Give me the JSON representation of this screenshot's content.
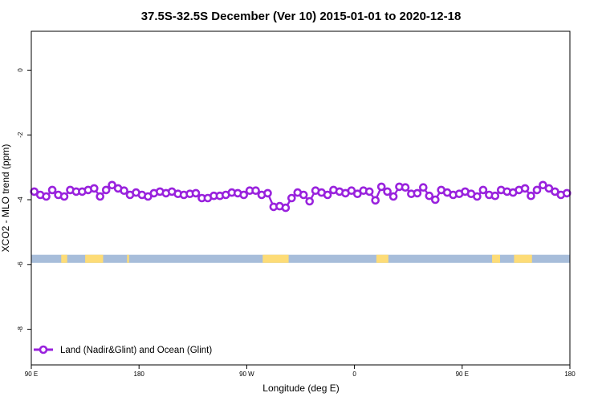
{
  "chart_data": {
    "type": "line",
    "title": "37.5S-32.5S December (Ver 10)   2015-01-01 to 2020-12-18",
    "xlabel": "Longitude (deg E)",
    "ylabel": "XCO2 - MLO trend (ppm)",
    "xlim": [
      -90,
      180
    ],
    "ylim": [
      -9.1,
      1.2
    ],
    "x_ticks": [
      {
        "value": -90,
        "label": "90 E"
      },
      {
        "value": -36,
        "label": "180"
      },
      {
        "value": 18,
        "label": "90 W"
      },
      {
        "value": 72,
        "label": "0"
      },
      {
        "value": 126,
        "label": "90 E"
      },
      {
        "value": 180,
        "label": "180"
      }
    ],
    "y_ticks": [
      {
        "value": 0,
        "label": "0"
      },
      {
        "value": -2,
        "label": "-2"
      },
      {
        "value": -4,
        "label": "-4"
      },
      {
        "value": -6,
        "label": "-6"
      },
      {
        "value": -8,
        "label": "-8"
      }
    ],
    "grid": false,
    "legend_position": "bottom-left",
    "land_ocean_strip": {
      "y_range": [
        -5.95,
        -5.7
      ],
      "ocean_color": "#a7bdda",
      "land_color": "#fddc77",
      "land_x_ranges": [
        [
          -75,
          -72
        ],
        [
          -63,
          -54
        ],
        [
          -42,
          -41
        ],
        [
          26,
          39
        ],
        [
          83,
          89
        ],
        [
          141,
          145
        ],
        [
          152,
          161
        ]
      ]
    },
    "series": [
      {
        "name": "Land (Nadir&Glint) and Ocean (Glint)",
        "color": "#9922dd",
        "x": [
          -88.5,
          -85.5,
          -82.5,
          -79.5,
          -76.5,
          -73.5,
          -70.5,
          -67.5,
          -64.5,
          -61.5,
          -58.5,
          -55.5,
          -52.5,
          -49.5,
          -46.5,
          -43.5,
          -40.5,
          -37.5,
          -34.5,
          -31.5,
          -28.5,
          -25.5,
          -22.5,
          -19.5,
          -16.5,
          -13.5,
          -10.5,
          -7.5,
          -4.5,
          -1.5,
          1.5,
          4.5,
          7.5,
          10.5,
          13.5,
          16.5,
          19.5,
          22.5,
          25.5,
          28.5,
          31.5,
          34.5,
          37.5,
          40.5,
          43.5,
          46.5,
          49.5,
          52.5,
          55.5,
          58.5,
          61.5,
          64.5,
          67.5,
          70.5,
          73.5,
          76.5,
          79.5,
          82.5,
          85.5,
          88.5,
          91.5,
          94.5,
          97.5,
          100.5,
          103.5,
          106.5,
          109.5,
          112.5,
          115.5,
          118.5,
          121.5,
          124.5,
          127.5,
          130.5,
          133.5,
          136.5,
          139.5,
          142.5,
          145.5,
          148.5,
          151.5,
          154.5,
          157.5,
          160.5,
          163.5,
          166.5,
          169.5,
          172.5,
          175.5,
          178.5
        ],
        "values": [
          -3.75,
          -3.85,
          -3.9,
          -3.7,
          -3.85,
          -3.9,
          -3.7,
          -3.75,
          -3.75,
          -3.7,
          -3.65,
          -3.9,
          -3.7,
          -3.55,
          -3.65,
          -3.72,
          -3.85,
          -3.78,
          -3.85,
          -3.9,
          -3.8,
          -3.75,
          -3.8,
          -3.75,
          -3.82,
          -3.85,
          -3.82,
          -3.8,
          -3.95,
          -3.95,
          -3.88,
          -3.88,
          -3.85,
          -3.78,
          -3.8,
          -3.85,
          -3.72,
          -3.72,
          -3.85,
          -3.8,
          -4.22,
          -4.2,
          -4.25,
          -3.95,
          -3.78,
          -3.85,
          -4.05,
          -3.72,
          -3.78,
          -3.85,
          -3.7,
          -3.75,
          -3.8,
          -3.72,
          -3.82,
          -3.72,
          -3.75,
          -4.02,
          -3.6,
          -3.75,
          -3.9,
          -3.6,
          -3.62,
          -3.82,
          -3.8,
          -3.62,
          -3.88,
          -4.0,
          -3.7,
          -3.78,
          -3.85,
          -3.82,
          -3.75,
          -3.82,
          -3.9,
          -3.7,
          -3.85,
          -3.88,
          -3.7,
          -3.75,
          -3.78,
          -3.7,
          -3.65,
          -3.88,
          -3.7,
          -3.55,
          -3.65,
          -3.75,
          -3.85,
          -3.8
        ]
      }
    ]
  }
}
